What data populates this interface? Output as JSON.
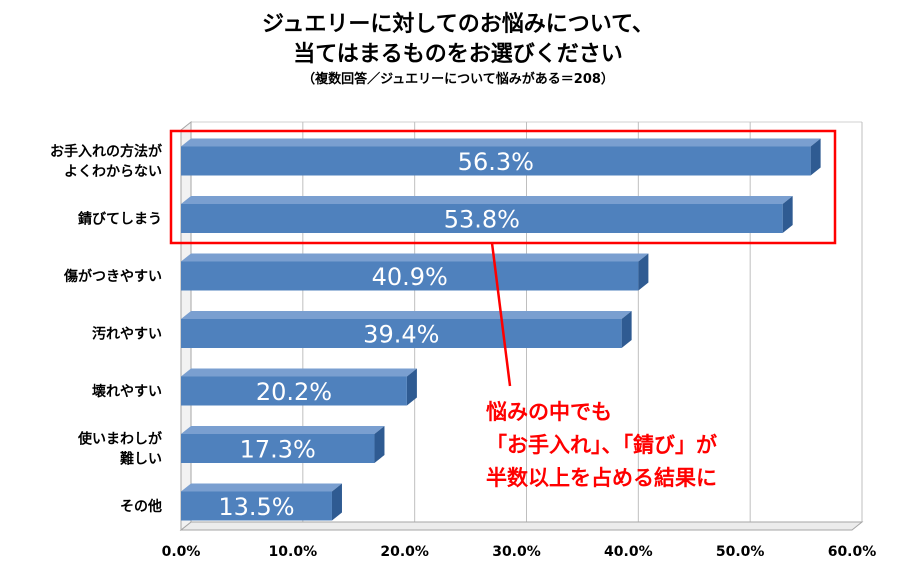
{
  "title": {
    "line1": "ジュエリーに対してのお悩みについて、",
    "line2": "当てはまるものをお選びください",
    "subtitle": "（複数回答／ジュエリーについて悩みがある＝208）"
  },
  "chart_data": {
    "type": "bar",
    "orientation": "horizontal",
    "categories": [
      [
        "お手入れの方法が",
        "よくわからない"
      ],
      [
        "錆びてしまう"
      ],
      [
        "傷がつきやすい"
      ],
      [
        "汚れやすい"
      ],
      [
        "壊れやすい"
      ],
      [
        "使いまわしが",
        "難しい"
      ],
      [
        "その他"
      ]
    ],
    "values": [
      56.3,
      53.8,
      40.9,
      39.4,
      20.2,
      17.3,
      13.5
    ],
    "value_labels": [
      "56.3%",
      "53.8%",
      "40.9%",
      "39.4%",
      "20.2%",
      "17.3%",
      "13.5%"
    ],
    "xlim": [
      0,
      60
    ],
    "ticks": [
      0,
      10,
      20,
      30,
      40,
      50,
      60
    ],
    "tick_labels": [
      "0.0%",
      "10.0%",
      "20.0%",
      "30.0%",
      "40.0%",
      "50.0%",
      "60.0%"
    ],
    "grid": true,
    "bar_color": "#4f81bd",
    "highlighted_categories": [
      0,
      1
    ]
  },
  "callout": {
    "line1": "悩みの中でも",
    "line2": "「お手入れ」、「錆び」が",
    "line3": "半数以上を占める結果に",
    "color": "#ff0000"
  }
}
